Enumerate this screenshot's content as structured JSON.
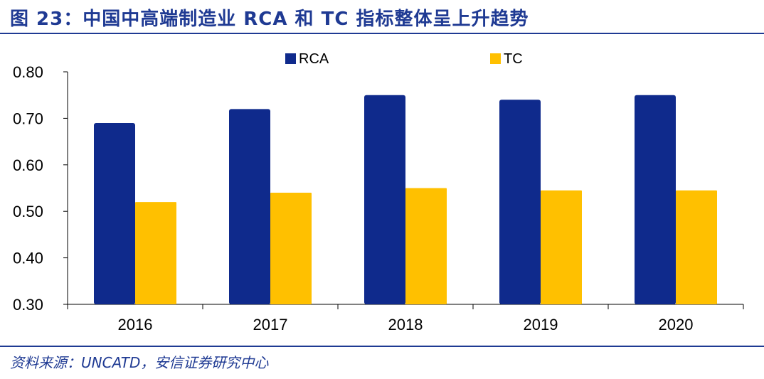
{
  "figure": {
    "title": "图 23：中国中高端制造业 RCA 和 TC 指标整体呈上升趋势",
    "source": "资料来源：UNCATD，安信证券研究中心"
  },
  "colors": {
    "rca": "#0f2a8c",
    "tc": "#ffc000",
    "accent": "#1f3a93",
    "axis": "#000000"
  },
  "chart_data": {
    "type": "bar",
    "categories": [
      "2016",
      "2017",
      "2018",
      "2019",
      "2020"
    ],
    "series": [
      {
        "name": "RCA",
        "values": [
          0.69,
          0.72,
          0.75,
          0.74,
          0.75
        ]
      },
      {
        "name": "TC",
        "values": [
          0.52,
          0.54,
          0.55,
          0.545,
          0.545
        ]
      }
    ],
    "ylim": [
      0.3,
      0.8
    ],
    "yticks": [
      "0.30",
      "0.40",
      "0.50",
      "0.60",
      "0.70",
      "0.80"
    ],
    "ytick_values": [
      0.3,
      0.4,
      0.5,
      0.6,
      0.7,
      0.8
    ],
    "xlabel": "",
    "ylabel": "",
    "grid": false,
    "legend": "top-center"
  }
}
